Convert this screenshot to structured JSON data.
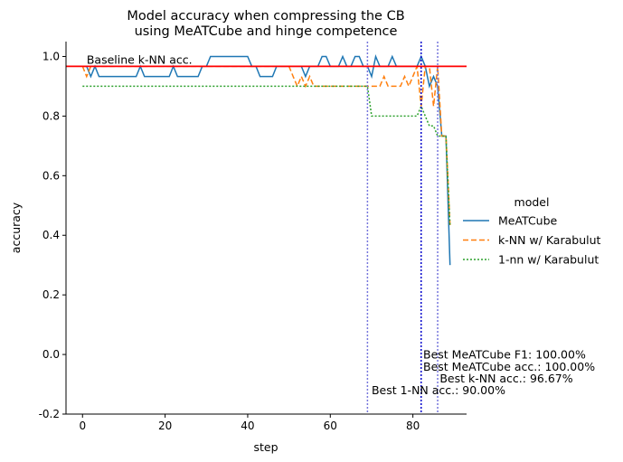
{
  "chart_data": {
    "type": "line",
    "title_lines": [
      "Model accuracy when compressing the CB",
      "using MeATCube and hinge competence"
    ],
    "xlabel": "step",
    "ylabel": "accuracy",
    "xlim": [
      -4,
      93
    ],
    "ylim": [
      -0.2,
      1.05
    ],
    "xticks": [
      0,
      20,
      40,
      60,
      80
    ],
    "yticks": [
      -0.2,
      0.0,
      0.2,
      0.4,
      0.6,
      0.8,
      1.0
    ],
    "grid": false,
    "legend": {
      "title": "model",
      "placement": "center-right outside"
    },
    "series": [
      {
        "name": "MeATCube",
        "color": "#1f77b4",
        "dash": "solid",
        "x": [
          0,
          1,
          2,
          3,
          4,
          5,
          6,
          7,
          8,
          9,
          10,
          11,
          12,
          13,
          14,
          15,
          16,
          17,
          18,
          19,
          20,
          21,
          22,
          23,
          24,
          25,
          26,
          27,
          28,
          29,
          30,
          31,
          32,
          33,
          34,
          35,
          36,
          37,
          38,
          39,
          40,
          41,
          42,
          43,
          44,
          45,
          46,
          47,
          48,
          49,
          50,
          51,
          52,
          53,
          54,
          55,
          56,
          57,
          58,
          59,
          60,
          61,
          62,
          63,
          64,
          65,
          66,
          67,
          68,
          69,
          70,
          71,
          72,
          73,
          74,
          75,
          76,
          77,
          78,
          79,
          80,
          81,
          82,
          83,
          84,
          85,
          86,
          87,
          88,
          89
        ],
        "y": [
          0.967,
          0.967,
          0.933,
          0.967,
          0.933,
          0.933,
          0.933,
          0.933,
          0.933,
          0.933,
          0.933,
          0.933,
          0.933,
          0.933,
          0.967,
          0.933,
          0.933,
          0.933,
          0.933,
          0.933,
          0.933,
          0.933,
          0.967,
          0.933,
          0.933,
          0.933,
          0.933,
          0.933,
          0.933,
          0.967,
          0.967,
          1.0,
          1.0,
          1.0,
          1.0,
          1.0,
          1.0,
          1.0,
          1.0,
          1.0,
          1.0,
          0.967,
          0.967,
          0.933,
          0.933,
          0.933,
          0.933,
          0.967,
          0.967,
          0.967,
          0.967,
          0.967,
          0.967,
          0.967,
          0.933,
          0.967,
          0.967,
          0.967,
          1.0,
          1.0,
          0.967,
          0.967,
          0.967,
          1.0,
          0.967,
          0.967,
          1.0,
          1.0,
          0.967,
          0.967,
          0.933,
          1.0,
          0.967,
          0.967,
          0.967,
          1.0,
          0.967,
          0.967,
          0.967,
          0.967,
          0.967,
          0.967,
          1.0,
          0.967,
          0.9,
          0.933,
          0.9,
          0.733,
          0.733,
          0.3
        ]
      },
      {
        "name": "k-NN w/ Karabulut",
        "color": "#ff7f0e",
        "dash": "dashed",
        "x": [
          0,
          1,
          2,
          3,
          4,
          5,
          6,
          7,
          8,
          9,
          10,
          11,
          12,
          13,
          14,
          15,
          16,
          17,
          18,
          19,
          20,
          21,
          22,
          23,
          24,
          25,
          26,
          27,
          28,
          29,
          30,
          31,
          32,
          33,
          34,
          35,
          36,
          37,
          38,
          39,
          40,
          41,
          42,
          43,
          44,
          45,
          46,
          47,
          48,
          49,
          50,
          51,
          52,
          53,
          54,
          55,
          56,
          57,
          58,
          59,
          60,
          61,
          62,
          63,
          64,
          65,
          66,
          67,
          68,
          69,
          70,
          71,
          72,
          73,
          74,
          75,
          76,
          77,
          78,
          79,
          80,
          81,
          82,
          83,
          84,
          85,
          86,
          87,
          88,
          89
        ],
        "y": [
          0.967,
          0.933,
          0.967,
          0.967,
          0.967,
          0.967,
          0.967,
          0.967,
          0.967,
          0.967,
          0.967,
          0.967,
          0.967,
          0.967,
          0.967,
          0.967,
          0.967,
          0.967,
          0.967,
          0.967,
          0.967,
          0.967,
          0.967,
          0.967,
          0.967,
          0.967,
          0.967,
          0.967,
          0.967,
          0.967,
          0.967,
          0.967,
          0.967,
          0.967,
          0.967,
          0.967,
          0.967,
          0.967,
          0.967,
          0.967,
          0.967,
          0.967,
          0.967,
          0.967,
          0.967,
          0.967,
          0.967,
          0.967,
          0.967,
          0.967,
          0.967,
          0.933,
          0.9,
          0.933,
          0.9,
          0.933,
          0.9,
          0.9,
          0.9,
          0.9,
          0.9,
          0.9,
          0.9,
          0.9,
          0.9,
          0.9,
          0.9,
          0.9,
          0.9,
          0.9,
          0.9,
          0.9,
          0.9,
          0.933,
          0.9,
          0.9,
          0.9,
          0.9,
          0.933,
          0.9,
          0.933,
          0.967,
          0.833,
          0.967,
          0.967,
          0.833,
          0.967,
          0.733,
          0.733,
          0.433
        ]
      },
      {
        "name": "1-nn w/ Karabulut",
        "color": "#2ca02c",
        "dash": "dotted",
        "x": [
          0,
          1,
          2,
          3,
          4,
          5,
          6,
          7,
          8,
          9,
          10,
          11,
          12,
          13,
          14,
          15,
          16,
          17,
          18,
          19,
          20,
          21,
          22,
          23,
          24,
          25,
          26,
          27,
          28,
          29,
          30,
          31,
          32,
          33,
          34,
          35,
          36,
          37,
          38,
          39,
          40,
          41,
          42,
          43,
          44,
          45,
          46,
          47,
          48,
          49,
          50,
          51,
          52,
          53,
          54,
          55,
          56,
          57,
          58,
          59,
          60,
          61,
          62,
          63,
          64,
          65,
          66,
          67,
          68,
          69,
          70,
          71,
          72,
          73,
          74,
          75,
          76,
          77,
          78,
          79,
          80,
          81,
          82,
          83,
          84,
          85,
          86,
          87,
          88,
          89
        ],
        "y": [
          0.9,
          0.9,
          0.9,
          0.9,
          0.9,
          0.9,
          0.9,
          0.9,
          0.9,
          0.9,
          0.9,
          0.9,
          0.9,
          0.9,
          0.9,
          0.9,
          0.9,
          0.9,
          0.9,
          0.9,
          0.9,
          0.9,
          0.9,
          0.9,
          0.9,
          0.9,
          0.9,
          0.9,
          0.9,
          0.9,
          0.9,
          0.9,
          0.9,
          0.9,
          0.9,
          0.9,
          0.9,
          0.9,
          0.9,
          0.9,
          0.9,
          0.9,
          0.9,
          0.9,
          0.9,
          0.9,
          0.9,
          0.9,
          0.9,
          0.9,
          0.9,
          0.9,
          0.9,
          0.9,
          0.9,
          0.9,
          0.9,
          0.9,
          0.9,
          0.9,
          0.9,
          0.9,
          0.9,
          0.9,
          0.9,
          0.9,
          0.9,
          0.9,
          0.9,
          0.9,
          0.8,
          0.8,
          0.8,
          0.8,
          0.8,
          0.8,
          0.8,
          0.8,
          0.8,
          0.8,
          0.8,
          0.8,
          0.833,
          0.8,
          0.767,
          0.767,
          0.733,
          0.733,
          0.733,
          0.433
        ]
      }
    ],
    "baseline": {
      "label": "Baseline k-NN acc.",
      "y": 0.967,
      "color": "#ff0000"
    },
    "vlines": [
      {
        "x": 69,
        "color": "#7777dd"
      },
      {
        "x": 82,
        "color": "#0000cc"
      },
      {
        "x": 86,
        "color": "#7777dd"
      }
    ],
    "annotations": [
      {
        "text": "Best MeATCube F1: 100.00%",
        "x": 82.5,
        "y": 0.0
      },
      {
        "text": "Best MeATCube acc.: 100.00%",
        "x": 82.5,
        "y": -0.04
      },
      {
        "text": "Best k-NN acc.: 96.67%",
        "x": 86.5,
        "y": -0.08
      },
      {
        "text": "Best 1-NN acc.: 90.00%",
        "x": 70,
        "y": -0.12
      }
    ]
  }
}
